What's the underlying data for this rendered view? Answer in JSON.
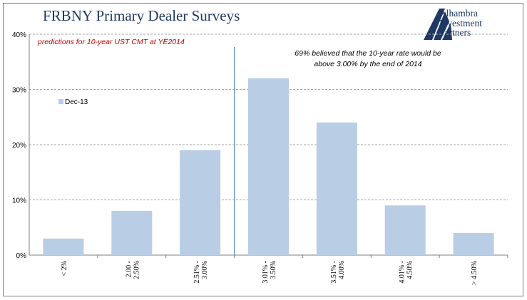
{
  "header": {
    "title": "FRBNY Primary Dealer Surveys",
    "logo_lines": [
      "Alhambra",
      "Investment",
      "Partners"
    ]
  },
  "colors": {
    "bar": "#b9cde5",
    "title": "#1f3864",
    "subtitle": "#c00000",
    "divider": "#4f81bd",
    "grid": "#a6a6a6",
    "axis": "#7f7f7f"
  },
  "chart_data": {
    "type": "bar",
    "subtitle": "predictions for 10-year UST CMT at YE2014",
    "categories": [
      [
        "< 2%"
      ],
      [
        "2.00 -",
        "2.50%"
      ],
      [
        "2.51% -",
        "3.00%"
      ],
      [
        "3.01% -",
        "3.50%"
      ],
      [
        "3.51% -",
        "4.00%"
      ],
      [
        "4.01% -",
        "4.50%"
      ],
      [
        "> 4.50%"
      ]
    ],
    "series": [
      {
        "name": "Dec-13",
        "values": [
          3,
          8,
          19,
          32,
          24,
          9,
          4
        ]
      }
    ],
    "ylim": [
      0,
      40
    ],
    "yticks": [
      "0%",
      "10%",
      "20%",
      "30%",
      "40%"
    ],
    "grid": true,
    "legend": "top-left",
    "annotation": [
      "69% believed that the 10-year rate would be",
      "above 3.00% by the end of 2014"
    ]
  }
}
